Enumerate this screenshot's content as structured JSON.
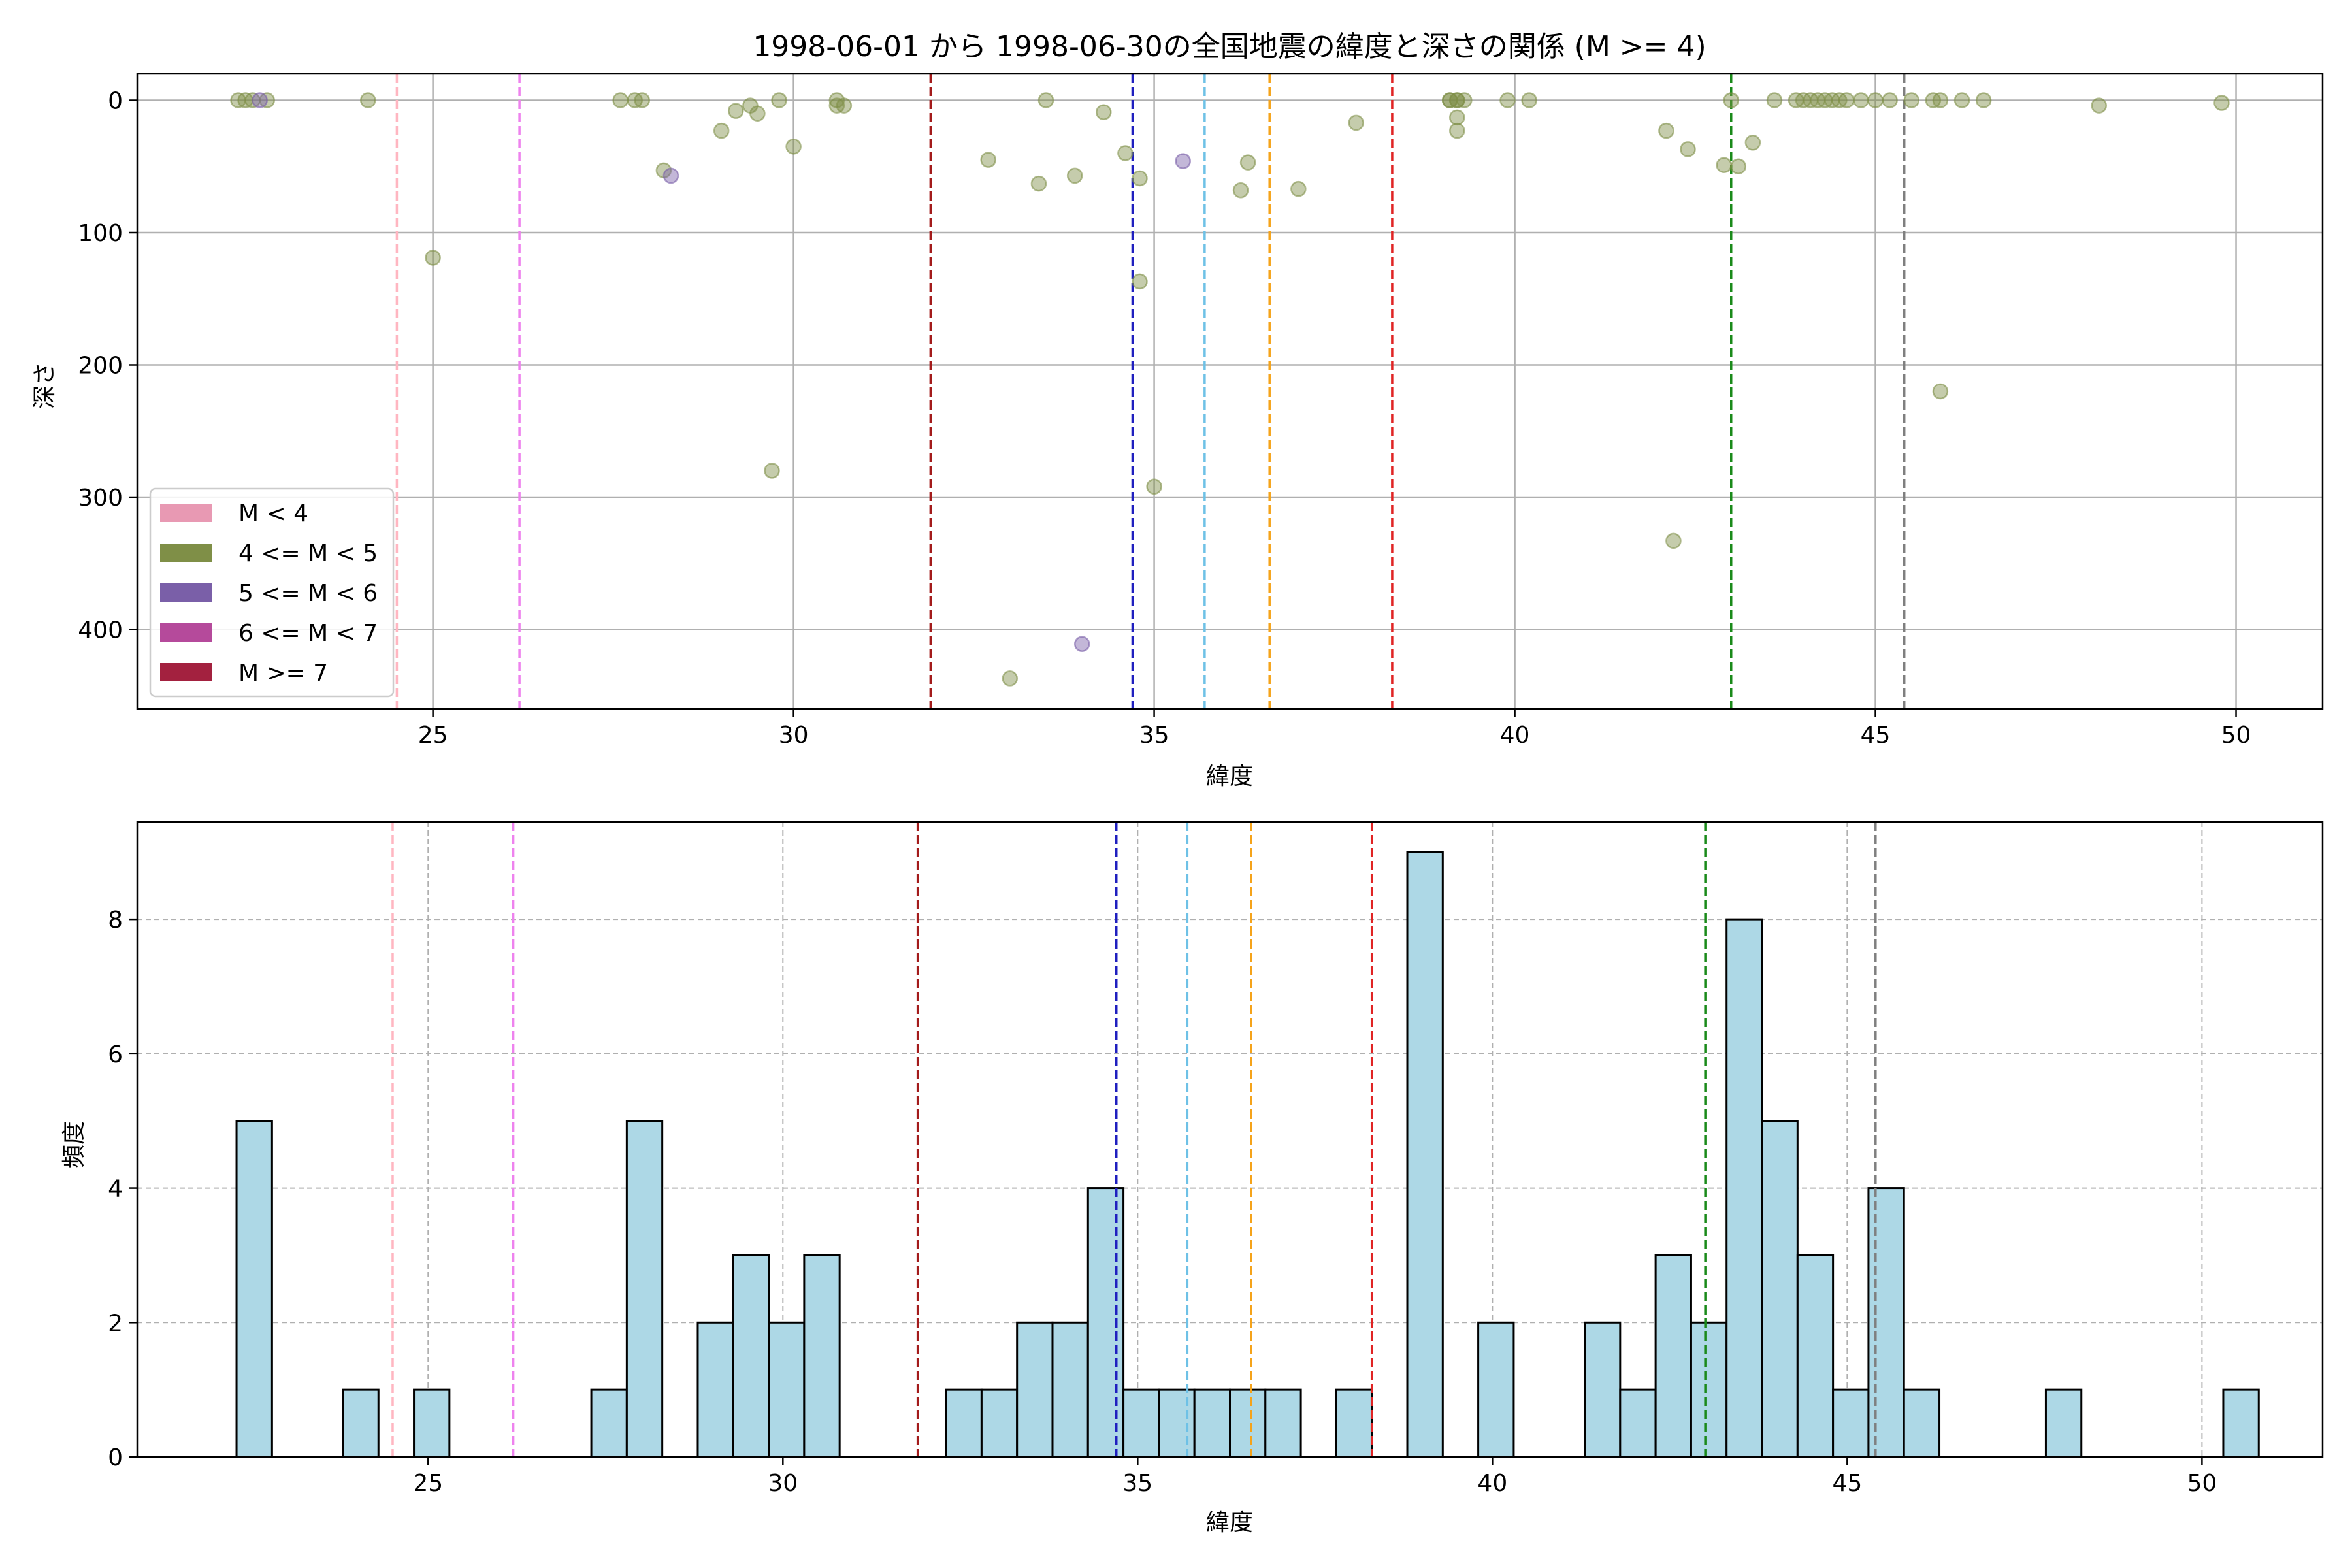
{
  "chart_data": [
    {
      "type": "scatter",
      "title": "1998-06-01 から 1998-06-30の全国地震の緯度と深さの関係 (M >= 4)",
      "xlabel": "緯度",
      "ylabel": "深さ",
      "xlim": [
        20.9,
        51.2
      ],
      "ylim": [
        460,
        -20
      ],
      "y_inverted": true,
      "xticks": [
        25,
        30,
        35,
        40,
        45,
        50
      ],
      "yticks": [
        0,
        100,
        200,
        300,
        400
      ],
      "grid": true,
      "legend_position": "lower-left",
      "legend": [
        {
          "label": "M < 4",
          "color": "#e899b3"
        },
        {
          "label": "4 <= M < 5",
          "color": "#7f8f47"
        },
        {
          "label": "5 <= M < 6",
          "color": "#7a5fa8"
        },
        {
          "label": "6 <= M < 7",
          "color": "#b54a9b"
        },
        {
          "label": "M >= 7",
          "color": "#a3213f"
        }
      ],
      "vlines": [
        {
          "x": 24.5,
          "color": "#ffb6c1"
        },
        {
          "x": 26.2,
          "color": "#ee82ee"
        },
        {
          "x": 31.9,
          "color": "#a31b1b"
        },
        {
          "x": 34.7,
          "color": "#1f1fbf"
        },
        {
          "x": 35.7,
          "color": "#6ec1e6"
        },
        {
          "x": 36.6,
          "color": "#f5a31a"
        },
        {
          "x": 38.3,
          "color": "#e02424"
        },
        {
          "x": 43.0,
          "color": "#1a8a1a"
        },
        {
          "x": 45.4,
          "color": "#7f7f7f"
        }
      ],
      "series": [
        {
          "category": "4 <= M < 5",
          "color": "#7f8f47",
          "points": [
            [
              22.3,
              0
            ],
            [
              22.4,
              0
            ],
            [
              22.5,
              0
            ],
            [
              22.7,
              0
            ],
            [
              24.1,
              0
            ],
            [
              25.0,
              119
            ],
            [
              27.6,
              0
            ],
            [
              27.8,
              0
            ],
            [
              27.9,
              0
            ],
            [
              28.2,
              53
            ],
            [
              29.0,
              23
            ],
            [
              29.2,
              8
            ],
            [
              29.4,
              4
            ],
            [
              29.5,
              10
            ],
            [
              29.7,
              280
            ],
            [
              29.8,
              0
            ],
            [
              30.0,
              35
            ],
            [
              30.6,
              4
            ],
            [
              30.6,
              0
            ],
            [
              30.7,
              4
            ],
            [
              32.7,
              45
            ],
            [
              33.0,
              437
            ],
            [
              33.4,
              63
            ],
            [
              33.5,
              0
            ],
            [
              33.9,
              57
            ],
            [
              34.3,
              9
            ],
            [
              34.6,
              40
            ],
            [
              34.8,
              59
            ],
            [
              34.8,
              137
            ],
            [
              35.0,
              292
            ],
            [
              36.2,
              68
            ],
            [
              36.3,
              47
            ],
            [
              37.0,
              67
            ],
            [
              37.8,
              17
            ],
            [
              39.1,
              0
            ],
            [
              39.1,
              0
            ],
            [
              39.2,
              0
            ],
            [
              39.2,
              13
            ],
            [
              39.2,
              0
            ],
            [
              39.2,
              23
            ],
            [
              39.3,
              0
            ],
            [
              39.9,
              0
            ],
            [
              40.2,
              0
            ],
            [
              42.1,
              23
            ],
            [
              42.2,
              333
            ],
            [
              42.4,
              37
            ],
            [
              42.9,
              49
            ],
            [
              43.1,
              50
            ],
            [
              43.0,
              0
            ],
            [
              43.3,
              32
            ],
            [
              43.6,
              0
            ],
            [
              43.9,
              0
            ],
            [
              44.0,
              0
            ],
            [
              44.1,
              0
            ],
            [
              44.2,
              0
            ],
            [
              44.3,
              0
            ],
            [
              44.4,
              0
            ],
            [
              44.5,
              0
            ],
            [
              44.6,
              0
            ],
            [
              44.8,
              0
            ],
            [
              45.0,
              0
            ],
            [
              45.2,
              0
            ],
            [
              45.5,
              0
            ],
            [
              45.8,
              0
            ],
            [
              45.9,
              0
            ],
            [
              45.9,
              220
            ],
            [
              46.2,
              0
            ],
            [
              46.5,
              0
            ],
            [
              48.1,
              4
            ],
            [
              49.8,
              2
            ]
          ]
        },
        {
          "category": "5 <= M < 6",
          "color": "#7a5fa8",
          "points": [
            [
              22.6,
              0
            ],
            [
              28.3,
              57
            ],
            [
              34.0,
              411
            ],
            [
              35.4,
              46
            ]
          ]
        }
      ]
    },
    {
      "type": "bar",
      "subtype": "histogram",
      "xlabel": "緯度",
      "ylabel": "頻度",
      "xlim": [
        20.9,
        51.7
      ],
      "ylim": [
        0,
        9.45
      ],
      "xticks": [
        25,
        30,
        35,
        40,
        45,
        50
      ],
      "yticks": [
        0,
        2,
        4,
        6,
        8
      ],
      "grid": true,
      "bar_color": "#add8e6",
      "edge_color": "#000000",
      "bin_start": 22.3,
      "bin_width": 0.5,
      "values": [
        5,
        0,
        0,
        1,
        0,
        1,
        0,
        0,
        0,
        0,
        1,
        5,
        0,
        2,
        3,
        2,
        3,
        0,
        0,
        0,
        1,
        1,
        2,
        2,
        4,
        1,
        1,
        1,
        1,
        1,
        0,
        1,
        0,
        9,
        0,
        2,
        0,
        0,
        2,
        1,
        3,
        2,
        8,
        5,
        3,
        1,
        4,
        1,
        0,
        0,
        0,
        1,
        0,
        0,
        0,
        0,
        1
      ],
      "vlines": [
        {
          "x": 24.5,
          "color": "#ffb6c1"
        },
        {
          "x": 26.2,
          "color": "#ee82ee"
        },
        {
          "x": 31.9,
          "color": "#a31b1b"
        },
        {
          "x": 34.7,
          "color": "#1f1fbf"
        },
        {
          "x": 35.7,
          "color": "#6ec1e6"
        },
        {
          "x": 36.6,
          "color": "#f5a31a"
        },
        {
          "x": 38.3,
          "color": "#e02424"
        },
        {
          "x": 43.0,
          "color": "#1a8a1a"
        },
        {
          "x": 45.4,
          "color": "#7f7f7f"
        }
      ]
    }
  ]
}
